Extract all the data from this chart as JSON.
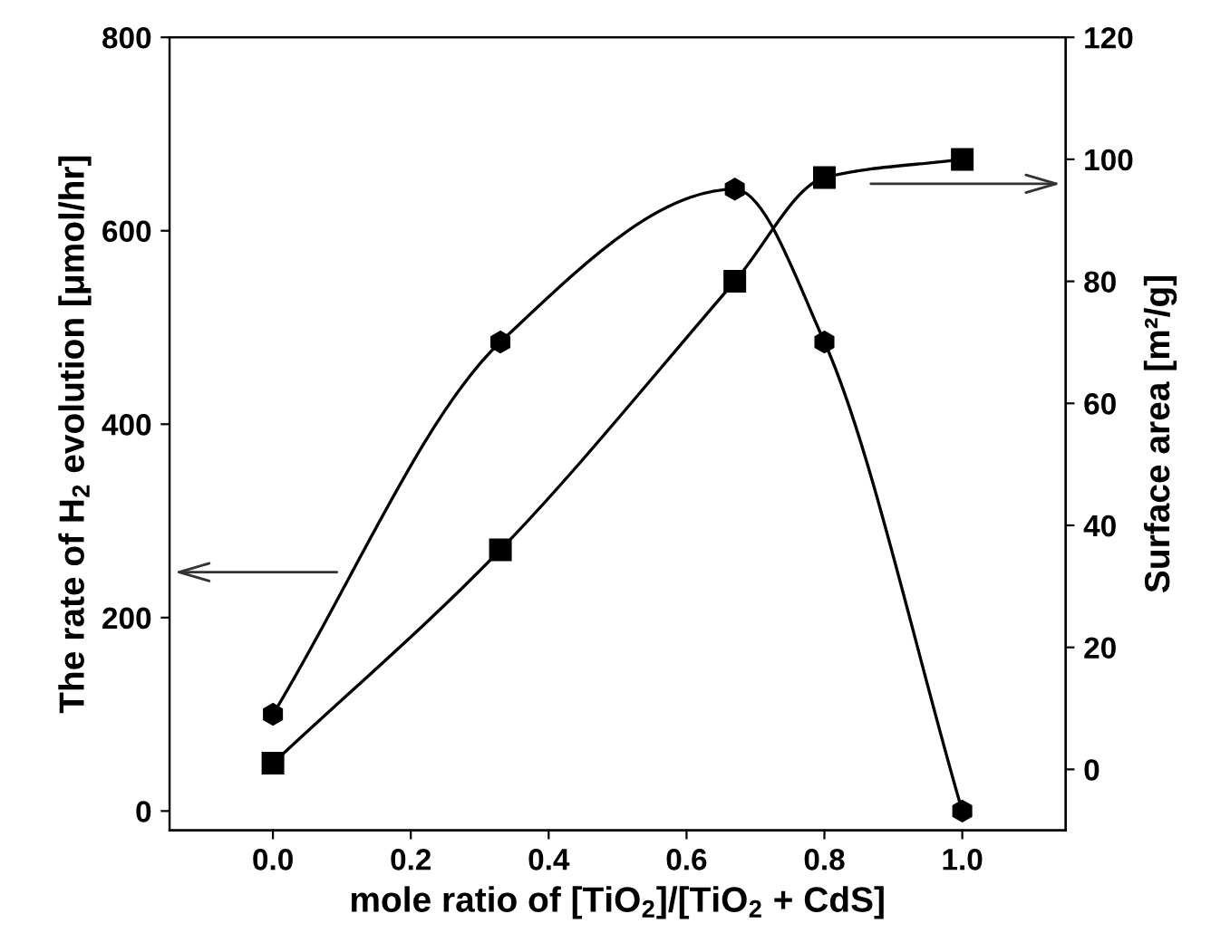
{
  "chart_data": {
    "type": "line",
    "xlabel": "mole ratio of [TiO$_{2}$]/[TiO$_{2}$ + CdS]",
    "ylabel": "The rate of H$_{2}$ evolution [μmol/hr]",
    "y2label": "Surface area [m²/g]",
    "x": [
      0,
      0.33,
      0.67,
      0.8,
      1.0
    ],
    "series": [
      {
        "color": "#000000",
        "marker": "circle",
        "values": [
          100,
          485,
          643,
          485,
          0
        ]
      },
      {
        "color": "#000000",
        "marker": "square",
        "axis": "y2",
        "values": [
          1,
          36,
          80,
          97,
          100
        ]
      }
    ],
    "xlim": [
      -0.15,
      1.15
    ],
    "ylim": [
      -20,
      800
    ],
    "y2lim": [
      -10,
      120
    ],
    "xticks": [
      {
        "value": 0,
        "label": "0.0"
      },
      {
        "value": 0.2,
        "label": "0.2"
      },
      {
        "value": 0.4,
        "label": "0.4"
      },
      {
        "value": 0.6,
        "label": "0.6"
      },
      {
        "value": 0.8,
        "label": "0.8"
      },
      {
        "value": 1.0,
        "label": "1.0"
      }
    ],
    "yticks": [
      0,
      200,
      400,
      600,
      800
    ],
    "y2ticks": [
      0,
      20,
      40,
      60,
      80,
      100,
      120
    ],
    "grid": false,
    "line_style": "solid"
  }
}
